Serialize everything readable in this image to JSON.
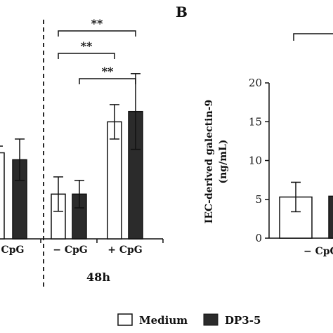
{
  "panel_label": "B",
  "legend": {
    "items": [
      {
        "label": "Medium",
        "fill": "#ffffff"
      },
      {
        "label": "DP3-5",
        "fill": "#2b2b2b"
      }
    ]
  },
  "colors": {
    "medium": "#ffffff",
    "dp35": "#2b2b2b",
    "stroke": "#111111"
  },
  "chart_data": [
    {
      "type": "bar",
      "title": "",
      "note": "left panel (partially cropped)",
      "groups": [
        "− CpG",
        "+ CpG"
      ],
      "group_tick_labels": [
        "CpG",
        "− CpG",
        "+ CpG"
      ],
      "timepoints": [
        "48h"
      ],
      "series": [
        {
          "name": "Medium",
          "values": [
            null,
            6.5,
            17.0
          ],
          "error": [
            null,
            2.5,
            2.5
          ]
        },
        {
          "name": "DP3-5",
          "values": [
            11.5,
            6.5,
            18.5
          ],
          "error": [
            3.0,
            2.0,
            5.5
          ]
        }
      ],
      "partial_medium_left": {
        "value": 12.5
      },
      "significance": [
        {
          "label": "**",
          "from_x": 0.0,
          "to_x": 0.0
        },
        {
          "label": "**",
          "from_x": 0.0,
          "to_x": 0.0
        },
        {
          "label": "**",
          "from_x": 0.0,
          "to_x": 0.0
        }
      ]
    },
    {
      "type": "bar",
      "ylabel": "IEC-derived  galectin-9 (ng/mL)",
      "ylim": [
        0,
        20
      ],
      "yticks": [
        0,
        5,
        10,
        15,
        20
      ],
      "categories": [
        "− CpG"
      ],
      "series": [
        {
          "name": "Medium",
          "values": [
            5.3
          ],
          "error": [
            1.9
          ]
        },
        {
          "name": "DP3-5",
          "values": [
            5.4
          ],
          "error": [
            null
          ]
        }
      ]
    }
  ]
}
